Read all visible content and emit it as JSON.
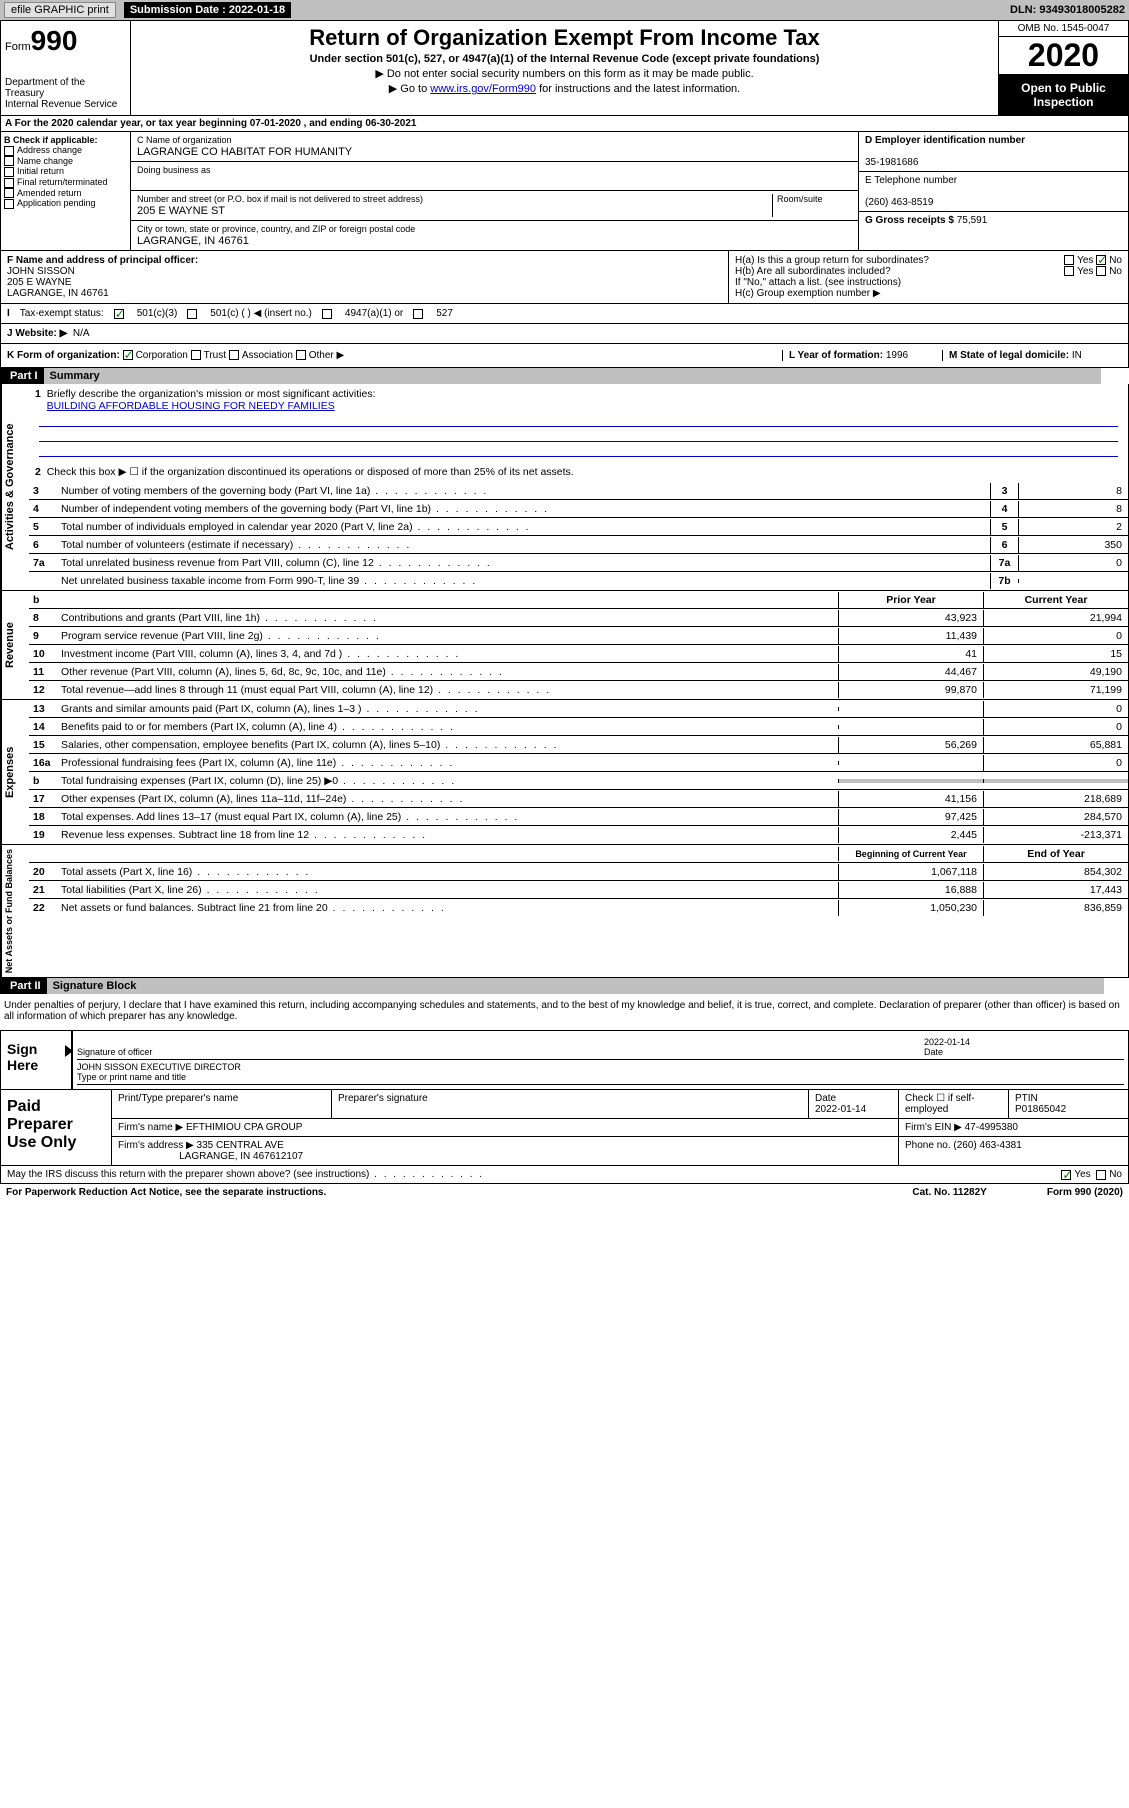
{
  "topbar": {
    "efile": "efile GRAPHIC print",
    "submission_label": "Submission Date : 2022-01-18",
    "dln": "DLN: 93493018005282"
  },
  "header": {
    "form_word": "Form",
    "form_num": "990",
    "dept": "Department of the Treasury\nInternal Revenue Service",
    "title": "Return of Organization Exempt From Income Tax",
    "sub1": "Under section 501(c), 527, or 4947(a)(1) of the Internal Revenue Code (except private foundations)",
    "sub2": "▶ Do not enter social security numbers on this form as it may be made public.",
    "sub3_pre": "▶ Go to ",
    "sub3_link": "www.irs.gov/Form990",
    "sub3_post": " for instructions and the latest information.",
    "omb": "OMB No. 1545-0047",
    "year": "2020",
    "open": "Open to Public Inspection"
  },
  "row_a": "A For the 2020 calendar year, or tax year beginning 07-01-2020   , and ending 06-30-2021",
  "section_b": {
    "label": "B Check if applicable:",
    "items": [
      "Address change",
      "Name change",
      "Initial return",
      "Final return/terminated",
      "Amended return",
      "Application pending"
    ]
  },
  "section_c": {
    "name_lbl": "C Name of organization",
    "name": "LAGRANGE CO HABITAT FOR HUMANITY",
    "dba_lbl": "Doing business as",
    "addr_lbl": "Number and street (or P.O. box if mail is not delivered to street address)",
    "room_lbl": "Room/suite",
    "addr": "205 E WAYNE ST",
    "city_lbl": "City or town, state or province, country, and ZIP or foreign postal code",
    "city": "LAGRANGE, IN  46761"
  },
  "section_d": {
    "ein_lbl": "D Employer identification number",
    "ein": "35-1981686",
    "tel_lbl": "E Telephone number",
    "tel": "(260) 463-8519",
    "gross_lbl": "G Gross receipts $",
    "gross": "75,591"
  },
  "section_f": {
    "lbl": "F Name and address of principal officer:",
    "name": "JOHN SISSON",
    "addr1": "205 E WAYNE",
    "addr2": "LAGRANGE, IN  46761"
  },
  "section_h": {
    "ha": "H(a)  Is this a group return for subordinates?",
    "hb": "H(b)  Are all subordinates included?",
    "hb_note": "If \"No,\" attach a list. (see instructions)",
    "hc": "H(c)  Group exemption number ▶",
    "yes": "Yes",
    "no": "No"
  },
  "row_i": {
    "lbl": "Tax-exempt status:",
    "opts": [
      "501(c)(3)",
      "501(c) (  ) ◀ (insert no.)",
      "4947(a)(1) or",
      "527"
    ]
  },
  "row_j": {
    "lbl": "J  Website: ▶",
    "val": "N/A"
  },
  "row_k": {
    "lbl": "K Form of organization:",
    "opts": [
      "Corporation",
      "Trust",
      "Association",
      "Other ▶"
    ]
  },
  "row_l": {
    "lbl": "L Year of formation:",
    "val": "1996"
  },
  "row_m": {
    "lbl": "M State of legal domicile:",
    "val": "IN"
  },
  "part1": {
    "hdr": "Part I",
    "title": "Summary"
  },
  "gov": {
    "side": "Activities & Governance",
    "l1_lbl": "Briefly describe the organization's mission or most significant activities:",
    "l1_val": "BUILDING AFFORDABLE HOUSING FOR NEEDY FAMILIES",
    "l2": "Check this box ▶ ☐  if the organization discontinued its operations or disposed of more than 25% of its net assets.",
    "rows": [
      {
        "n": "3",
        "t": "Number of voting members of the governing body (Part VI, line 1a)",
        "bn": "3",
        "v": "8"
      },
      {
        "n": "4",
        "t": "Number of independent voting members of the governing body (Part VI, line 1b)",
        "bn": "4",
        "v": "8"
      },
      {
        "n": "5",
        "t": "Total number of individuals employed in calendar year 2020 (Part V, line 2a)",
        "bn": "5",
        "v": "2"
      },
      {
        "n": "6",
        "t": "Total number of volunteers (estimate if necessary)",
        "bn": "6",
        "v": "350"
      },
      {
        "n": "7a",
        "t": "Total unrelated business revenue from Part VIII, column (C), line 12",
        "bn": "7a",
        "v": "0"
      },
      {
        "n": "",
        "t": "Net unrelated business taxable income from Form 990-T, line 39",
        "bn": "7b",
        "v": ""
      }
    ]
  },
  "rev": {
    "side": "Revenue",
    "hdr_b": "b",
    "hdr_py": "Prior Year",
    "hdr_cy": "Current Year",
    "rows": [
      {
        "n": "8",
        "t": "Contributions and grants (Part VIII, line 1h)",
        "py": "43,923",
        "cy": "21,994"
      },
      {
        "n": "9",
        "t": "Program service revenue (Part VIII, line 2g)",
        "py": "11,439",
        "cy": "0"
      },
      {
        "n": "10",
        "t": "Investment income (Part VIII, column (A), lines 3, 4, and 7d )",
        "py": "41",
        "cy": "15"
      },
      {
        "n": "11",
        "t": "Other revenue (Part VIII, column (A), lines 5, 6d, 8c, 9c, 10c, and 11e)",
        "py": "44,467",
        "cy": "49,190"
      },
      {
        "n": "12",
        "t": "Total revenue—add lines 8 through 11 (must equal Part VIII, column (A), line 12)",
        "py": "99,870",
        "cy": "71,199"
      }
    ]
  },
  "exp": {
    "side": "Expenses",
    "rows": [
      {
        "n": "13",
        "t": "Grants and similar amounts paid (Part IX, column (A), lines 1–3 )",
        "py": "",
        "cy": "0"
      },
      {
        "n": "14",
        "t": "Benefits paid to or for members (Part IX, column (A), line 4)",
        "py": "",
        "cy": "0"
      },
      {
        "n": "15",
        "t": "Salaries, other compensation, employee benefits (Part IX, column (A), lines 5–10)",
        "py": "56,269",
        "cy": "65,881"
      },
      {
        "n": "16a",
        "t": "Professional fundraising fees (Part IX, column (A), line 11e)",
        "py": "",
        "cy": "0"
      },
      {
        "n": "b",
        "t": "Total fundraising expenses (Part IX, column (D), line 25) ▶0",
        "py": "shaded",
        "cy": "shaded"
      },
      {
        "n": "17",
        "t": "Other expenses (Part IX, column (A), lines 11a–11d, 11f–24e)",
        "py": "41,156",
        "cy": "218,689"
      },
      {
        "n": "18",
        "t": "Total expenses. Add lines 13–17 (must equal Part IX, column (A), line 25)",
        "py": "97,425",
        "cy": "284,570"
      },
      {
        "n": "19",
        "t": "Revenue less expenses. Subtract line 18 from line 12",
        "py": "2,445",
        "cy": "-213,371"
      }
    ]
  },
  "net": {
    "side": "Net Assets or Fund Balances",
    "hdr_py": "Beginning of Current Year",
    "hdr_cy": "End of Year",
    "rows": [
      {
        "n": "20",
        "t": "Total assets (Part X, line 16)",
        "py": "1,067,118",
        "cy": "854,302"
      },
      {
        "n": "21",
        "t": "Total liabilities (Part X, line 26)",
        "py": "16,888",
        "cy": "17,443"
      },
      {
        "n": "22",
        "t": "Net assets or fund balances. Subtract line 21 from line 20",
        "py": "1,050,230",
        "cy": "836,859"
      }
    ]
  },
  "part2": {
    "hdr": "Part II",
    "title": "Signature Block"
  },
  "perjury": "Under penalties of perjury, I declare that I have examined this return, including accompanying schedules and statements, and to the best of my knowledge and belief, it is true, correct, and complete. Declaration of preparer (other than officer) is based on all information of which preparer has any knowledge.",
  "sign": {
    "lbl": "Sign Here",
    "sig_lbl": "Signature of officer",
    "date_lbl": "Date",
    "date": "2022-01-14",
    "name": "JOHN SISSON  EXECUTIVE DIRECTOR",
    "name_lbl": "Type or print name and title"
  },
  "prep": {
    "lbl": "Paid Preparer Use Only",
    "h_name": "Print/Type preparer's name",
    "h_sig": "Preparer's signature",
    "h_date": "Date",
    "date": "2022-01-14",
    "h_chk": "Check ☐ if self-employed",
    "h_ptin": "PTIN",
    "ptin": "P01865042",
    "firm_lbl": "Firm's name    ▶",
    "firm": "EFTHIMIOU CPA GROUP",
    "ein_lbl": "Firm's EIN ▶",
    "ein": "47-4995380",
    "addr_lbl": "Firm's address ▶",
    "addr": "335 CENTRAL AVE",
    "addr2": "LAGRANGE, IN  467612107",
    "phone_lbl": "Phone no.",
    "phone": "(260) 463-4381"
  },
  "discuss": {
    "q": "May the IRS discuss this return with the preparer shown above? (see instructions)",
    "yes": "Yes",
    "no": "No"
  },
  "footer": {
    "pra": "For Paperwork Reduction Act Notice, see the separate instructions.",
    "cat": "Cat. No. 11282Y",
    "form": "Form 990 (2020)"
  }
}
